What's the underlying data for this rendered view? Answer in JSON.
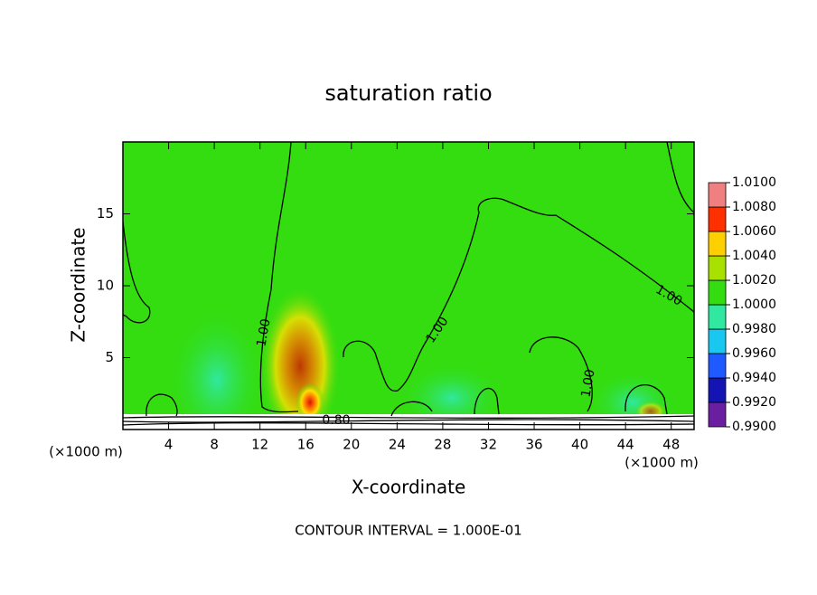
{
  "chart_data": {
    "type": "contour",
    "title": "saturation ratio",
    "x_label": "X-coordinate",
    "y_label": "Z-coordinate",
    "x_unit": "(×1000 m)",
    "y_unit": "(×1000 m)",
    "xlim": [
      0,
      50
    ],
    "ylim": [
      0,
      20
    ],
    "xticks": [
      4,
      8,
      12,
      16,
      20,
      24,
      28,
      32,
      36,
      40,
      44,
      48
    ],
    "yticks": [
      5,
      10,
      15
    ],
    "contour_labels": [
      "1.00",
      "1.00",
      "1.00",
      "1.00",
      "0.80"
    ],
    "footer": "CONTOUR INTERVAL = 1.000E-01",
    "colorbar": {
      "ticks": [
        {
          "value": 0.99,
          "label": "0.9900"
        },
        {
          "value": 0.992,
          "label": "0.9920"
        },
        {
          "value": 0.994,
          "label": "0.9940"
        },
        {
          "value": 0.996,
          "label": "0.9960"
        },
        {
          "value": 0.998,
          "label": "0.9980"
        },
        {
          "value": 1.0,
          "label": "1.0000"
        },
        {
          "value": 1.002,
          "label": "1.0020"
        },
        {
          "value": 1.004,
          "label": "1.0040"
        },
        {
          "value": 1.006,
          "label": "1.0060"
        },
        {
          "value": 1.008,
          "label": "1.0080"
        },
        {
          "value": 1.01,
          "label": "1.0100"
        }
      ],
      "colors": [
        "#6a1fa0",
        "#1414b4",
        "#1e5aff",
        "#18c8f0",
        "#30e8a0",
        "#33dd10",
        "#a8e000",
        "#ffd000",
        "#ff3000",
        "#f08080"
      ]
    }
  }
}
